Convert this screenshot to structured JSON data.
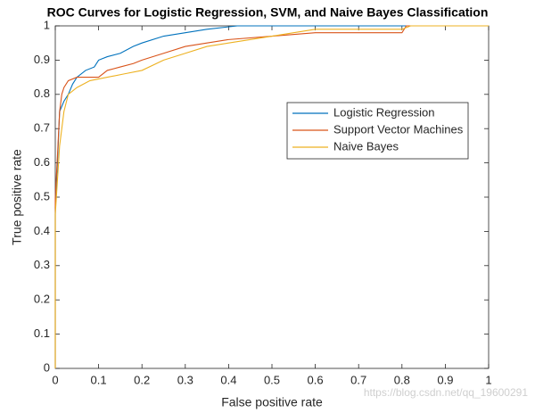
{
  "chart_data": {
    "type": "line",
    "title": "ROC Curves for Logistic Regression, SVM, and Naive Bayes Classification",
    "x_label": "False positive rate",
    "y_label": "True positive rate",
    "watermark": "https://blog.csdn.net/qq_19600291",
    "xlim": [
      0,
      1
    ],
    "ylim": [
      0,
      1
    ],
    "xticks": [
      0,
      0.1,
      0.2,
      0.3,
      0.4,
      0.5,
      0.6,
      0.7,
      0.8,
      0.9,
      1
    ],
    "yticks": [
      0,
      0.1,
      0.2,
      0.3,
      0.4,
      0.5,
      0.6,
      0.7,
      0.8,
      0.9,
      1
    ],
    "series": [
      {
        "name": "Logistic Regression",
        "color": "#0072bd",
        "x": [
          0,
          0,
          0.005,
          0.01,
          0.02,
          0.03,
          0.04,
          0.05,
          0.07,
          0.09,
          0.1,
          0.12,
          0.15,
          0.18,
          0.2,
          0.25,
          0.3,
          0.35,
          0.42,
          1
        ],
        "values": [
          0,
          0.47,
          0.6,
          0.75,
          0.78,
          0.8,
          0.83,
          0.85,
          0.87,
          0.88,
          0.9,
          0.91,
          0.92,
          0.94,
          0.95,
          0.97,
          0.98,
          0.99,
          1,
          1
        ]
      },
      {
        "name": "Support Vector Machines",
        "color": "#d95319",
        "x": [
          0,
          0,
          0.005,
          0.01,
          0.015,
          0.02,
          0.03,
          0.05,
          0.1,
          0.12,
          0.15,
          0.18,
          0.2,
          0.25,
          0.3,
          0.35,
          0.4,
          0.5,
          0.6,
          0.8,
          0.81,
          1
        ],
        "values": [
          0,
          0.5,
          0.62,
          0.75,
          0.8,
          0.82,
          0.84,
          0.85,
          0.85,
          0.87,
          0.88,
          0.89,
          0.9,
          0.92,
          0.94,
          0.95,
          0.96,
          0.97,
          0.98,
          0.98,
          1,
          1
        ]
      },
      {
        "name": "Naive Bayes",
        "color": "#edb120",
        "x": [
          0,
          0,
          0.005,
          0.01,
          0.02,
          0.03,
          0.05,
          0.08,
          0.12,
          0.16,
          0.2,
          0.25,
          0.3,
          0.35,
          0.4,
          0.5,
          0.55,
          0.6,
          0.8,
          0.82,
          1
        ],
        "values": [
          0,
          0.45,
          0.55,
          0.65,
          0.75,
          0.8,
          0.82,
          0.84,
          0.85,
          0.86,
          0.87,
          0.9,
          0.92,
          0.94,
          0.95,
          0.97,
          0.98,
          0.99,
          0.99,
          1,
          1
        ]
      }
    ]
  }
}
